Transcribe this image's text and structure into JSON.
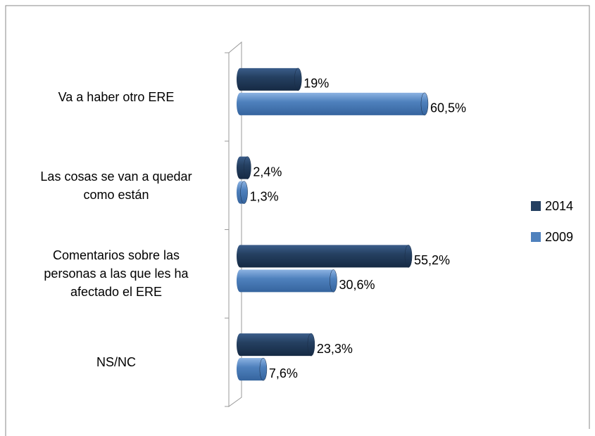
{
  "chart_data": {
    "type": "bar",
    "orientation": "horizontal",
    "categories": [
      "Va a haber otro ERE",
      "Las cosas se van a quedar\ncomo están",
      "Comentarios sobre las\npersonas a las que les ha\nafectado el ERE",
      "NS/NC"
    ],
    "series": [
      {
        "name": "2014",
        "color": "#254061",
        "values": [
          19,
          2.4,
          55.2,
          23.3
        ],
        "value_labels": [
          "19%",
          "2,4%",
          "55,2%",
          "23,3%"
        ]
      },
      {
        "name": "2009",
        "color": "#4f81bd",
        "values": [
          60.5,
          1.3,
          30.6,
          7.6
        ],
        "value_labels": [
          "60,5%",
          "1,3%",
          "30,6%",
          "7,6%"
        ]
      }
    ],
    "legend": "right"
  }
}
